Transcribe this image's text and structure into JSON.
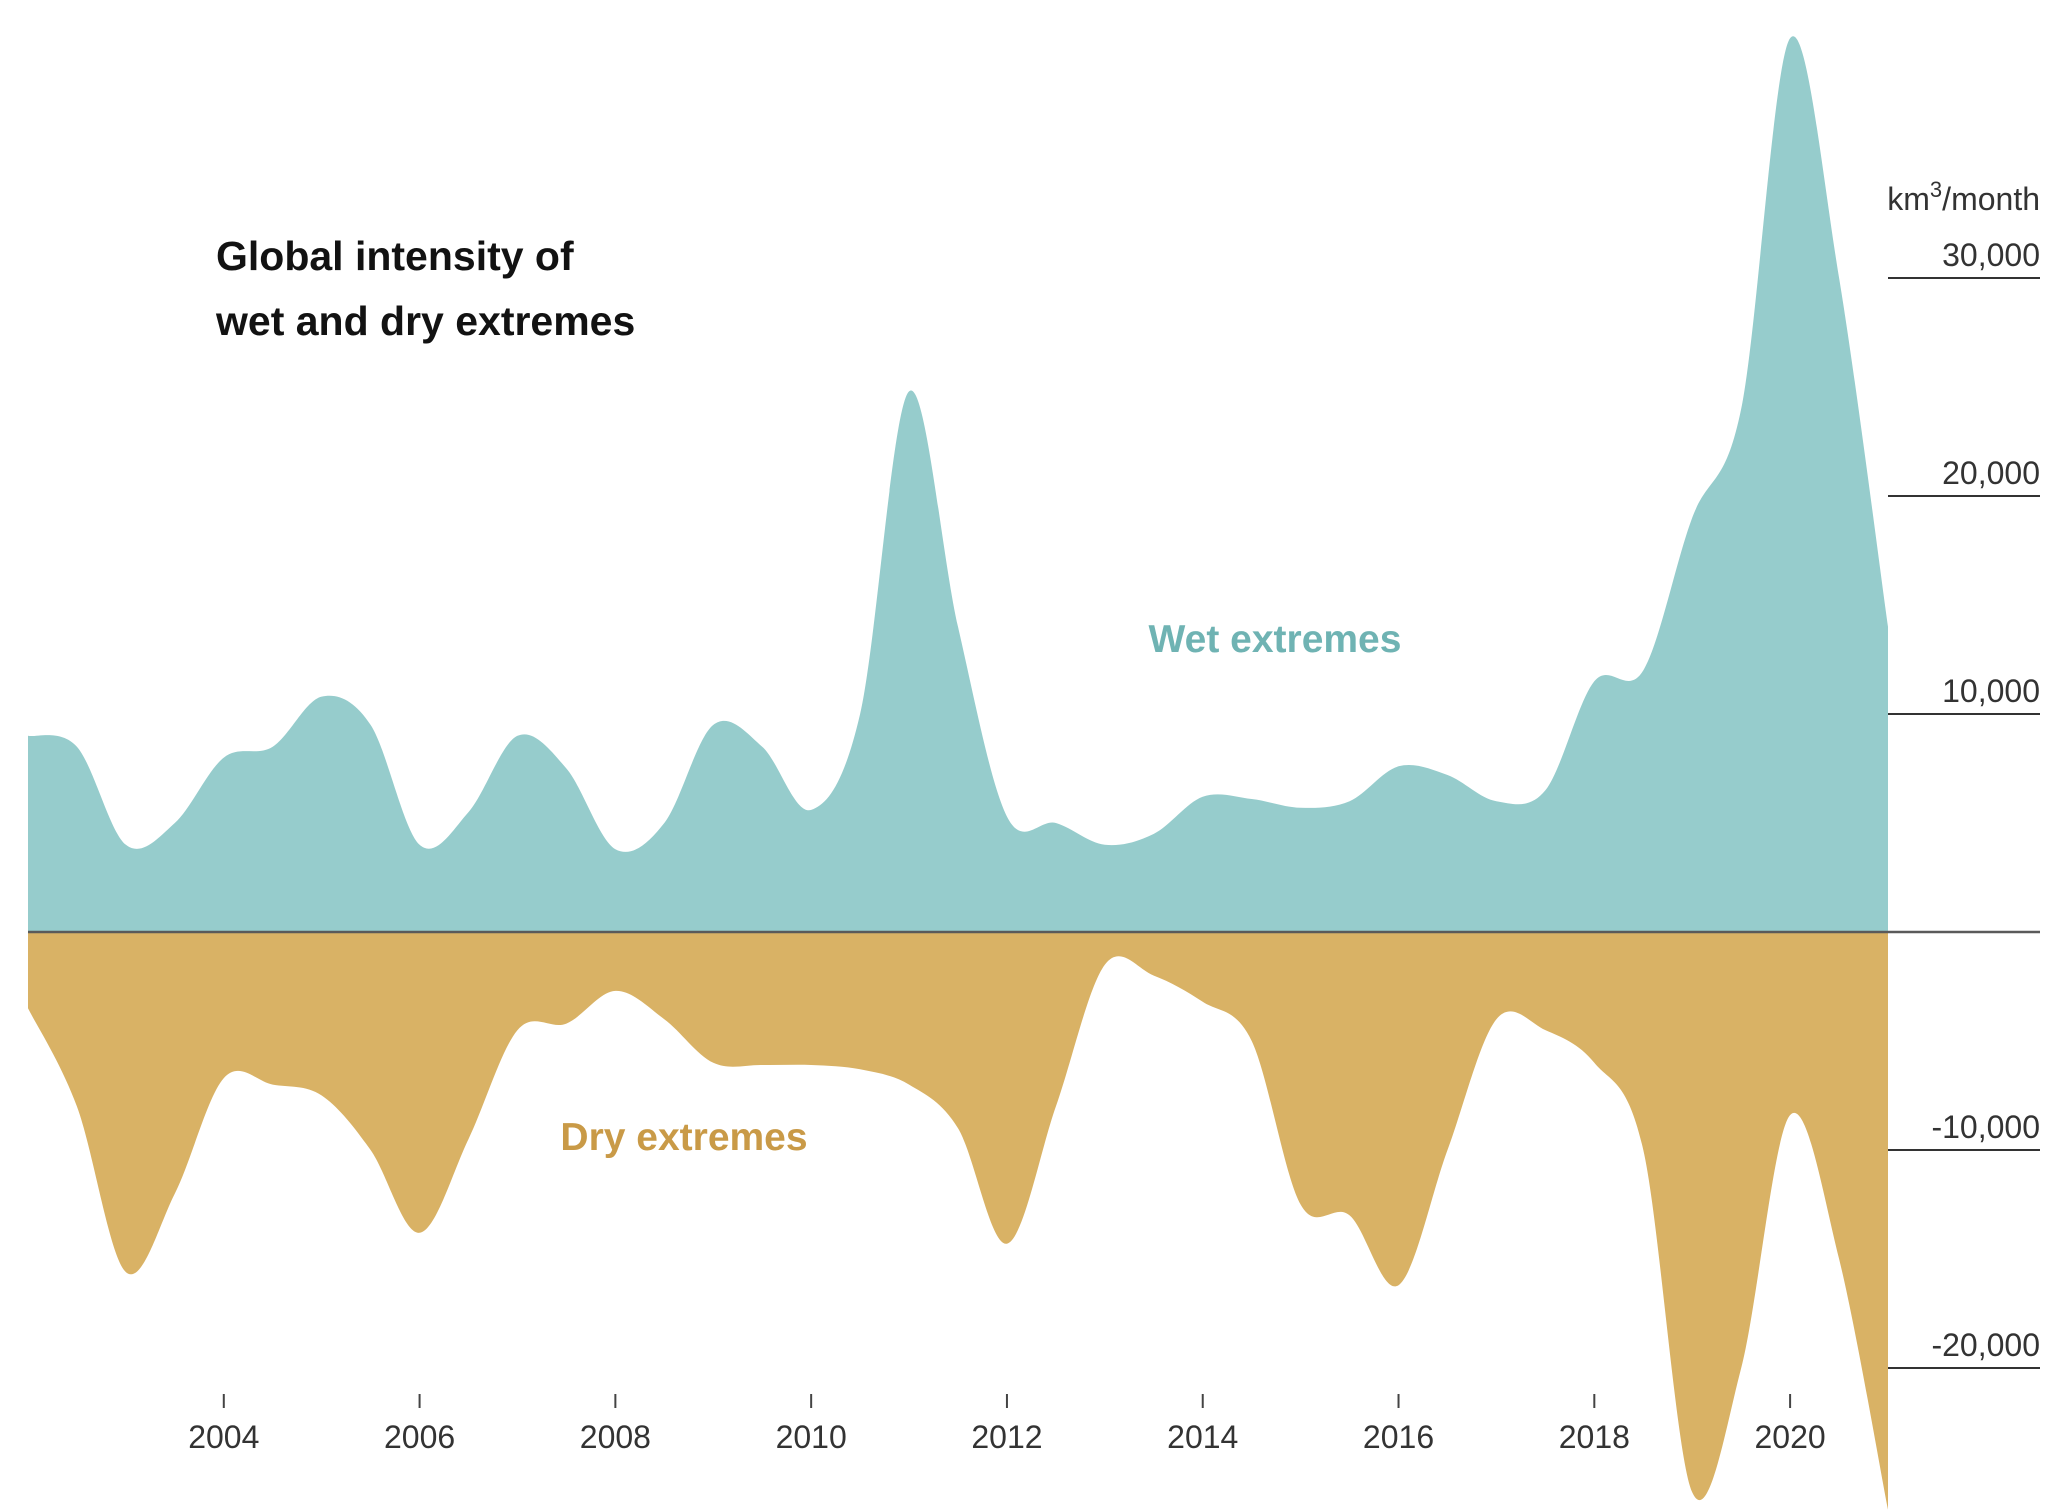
{
  "chart_data": {
    "type": "area",
    "title_lines": [
      "Global intensity of",
      "wet and dry extremes"
    ],
    "unit_label": {
      "base": "km",
      "sup": "3",
      "rest": "/month"
    },
    "x": [
      2002.0,
      2002.5,
      2003.0,
      2003.5,
      2004.0,
      2004.5,
      2005.0,
      2005.5,
      2006.0,
      2006.5,
      2007.0,
      2007.5,
      2008.0,
      2008.5,
      2009.0,
      2009.5,
      2010.0,
      2010.5,
      2011.0,
      2011.5,
      2012.0,
      2012.5,
      2013.0,
      2013.5,
      2014.0,
      2014.5,
      2015.0,
      2015.5,
      2016.0,
      2016.5,
      2017.0,
      2017.5,
      2018.0,
      2018.5,
      2019.0,
      2019.5,
      2020.0,
      2020.5,
      2021.0
    ],
    "series": [
      {
        "name": "Wet extremes",
        "color": "#96cccc",
        "values": [
          9000,
          8500,
          4000,
          5000,
          8000,
          8500,
          10800,
          9500,
          4000,
          5500,
          9000,
          7500,
          3800,
          5000,
          9500,
          8500,
          5600,
          10000,
          24800,
          14000,
          5300,
          5000,
          4000,
          4500,
          6200,
          6100,
          5700,
          6000,
          7600,
          7200,
          6000,
          6500,
          11500,
          12000,
          19000,
          24000,
          41000,
          30000,
          14000
        ]
      },
      {
        "name": "Dry extremes",
        "color": "#d9b265",
        "values": [
          -3500,
          -8000,
          -15600,
          -12000,
          -6700,
          -7000,
          -7500,
          -10000,
          -13800,
          -9500,
          -4500,
          -4200,
          -2700,
          -4000,
          -6000,
          -6100,
          -6100,
          -6300,
          -7000,
          -9000,
          -14300,
          -8000,
          -1500,
          -2000,
          -3200,
          -5000,
          -12500,
          -13000,
          -16200,
          -10000,
          -4000,
          -4500,
          -6000,
          -10000,
          -25700,
          -20000,
          -8400,
          -15000,
          -26500
        ]
      }
    ],
    "y_ticks": [
      30000,
      20000,
      10000,
      -10000,
      -20000
    ],
    "y_tick_labels": [
      "30,000",
      "20,000",
      "10,000",
      "-10,000",
      "-20,000"
    ],
    "x_ticks": [
      2004,
      2006,
      2008,
      2010,
      2012,
      2014,
      2016,
      2018,
      2020
    ],
    "x_tick_labels": [
      "2004",
      "2006",
      "2008",
      "2010",
      "2012",
      "2014",
      "2016",
      "2018",
      "2020"
    ],
    "ylim": [
      -27000,
      42000
    ],
    "xlim": [
      2002,
      2021
    ],
    "grid": false,
    "legend": "none (direct labels)"
  }
}
